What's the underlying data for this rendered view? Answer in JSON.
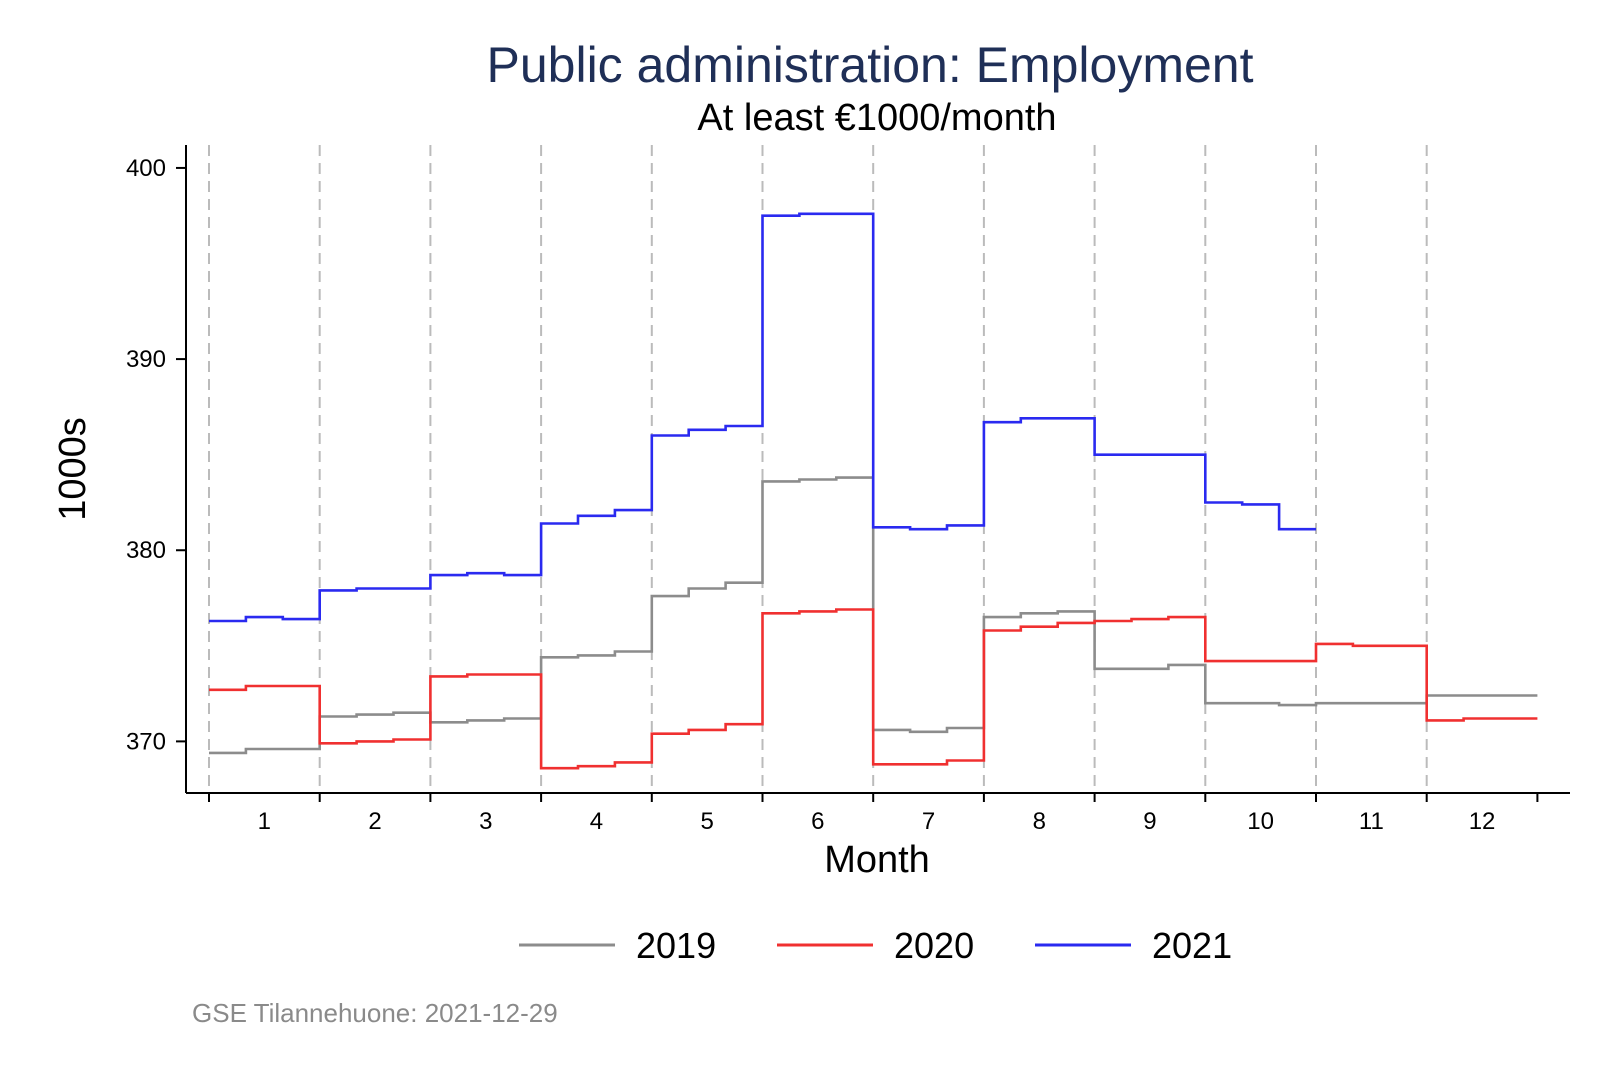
{
  "chart_data": {
    "type": "line",
    "title": "Public administration: Employment",
    "subtitle": "At least €1000/month",
    "xlabel": "Month",
    "ylabel": "1000s",
    "categories": [
      "1",
      "2",
      "3",
      "4",
      "5",
      "6",
      "7",
      "8",
      "9",
      "10",
      "11",
      "12"
    ],
    "ylim": [
      367.3,
      401.2
    ],
    "yticks": [
      370,
      380,
      390,
      400
    ],
    "grid": "vertical dashed at month boundaries",
    "legend_position": "bottom",
    "note": "GSE Tilannehuone: 2021-12-29",
    "series": [
      {
        "name": "2019",
        "color": "#8c8c8c",
        "values": [
          [
            369.4,
            369.6,
            369.6
          ],
          [
            371.3,
            371.4,
            371.5
          ],
          [
            371.0,
            371.1,
            371.2
          ],
          [
            374.4,
            374.5,
            374.7
          ],
          [
            377.6,
            378.0,
            378.3
          ],
          [
            383.6,
            383.7,
            383.8
          ],
          [
            370.6,
            370.5,
            370.7
          ],
          [
            376.5,
            376.7,
            376.8
          ],
          [
            373.8,
            373.8,
            374.0
          ],
          [
            372.0,
            372.0,
            371.9
          ],
          [
            372.0,
            372.0,
            372.0
          ],
          [
            372.4,
            372.4,
            372.4
          ]
        ]
      },
      {
        "name": "2020",
        "color": "#f03030",
        "values": [
          [
            372.7,
            372.9,
            372.9
          ],
          [
            369.9,
            370.0,
            370.1
          ],
          [
            373.4,
            373.5,
            373.5
          ],
          [
            368.6,
            368.7,
            368.9
          ],
          [
            370.4,
            370.6,
            370.9
          ],
          [
            376.7,
            376.8,
            376.9
          ],
          [
            368.8,
            368.8,
            369.0
          ],
          [
            375.8,
            376.0,
            376.2
          ],
          [
            376.3,
            376.4,
            376.5
          ],
          [
            374.2,
            374.2,
            374.2
          ],
          [
            375.1,
            375.0,
            375.0
          ],
          [
            371.1,
            371.2,
            371.2
          ]
        ]
      },
      {
        "name": "2021",
        "color": "#2a2af0",
        "values": [
          [
            376.3,
            376.5,
            376.4
          ],
          [
            377.9,
            378.0,
            378.0
          ],
          [
            378.7,
            378.8,
            378.7
          ],
          [
            381.4,
            381.8,
            382.1
          ],
          [
            386.0,
            386.3,
            386.5
          ],
          [
            397.5,
            397.6,
            397.6
          ],
          [
            381.2,
            381.1,
            381.3
          ],
          [
            386.7,
            386.9,
            386.9
          ],
          [
            385.0,
            385.0,
            385.0
          ],
          [
            382.5,
            382.4,
            381.1
          ]
        ]
      }
    ]
  }
}
